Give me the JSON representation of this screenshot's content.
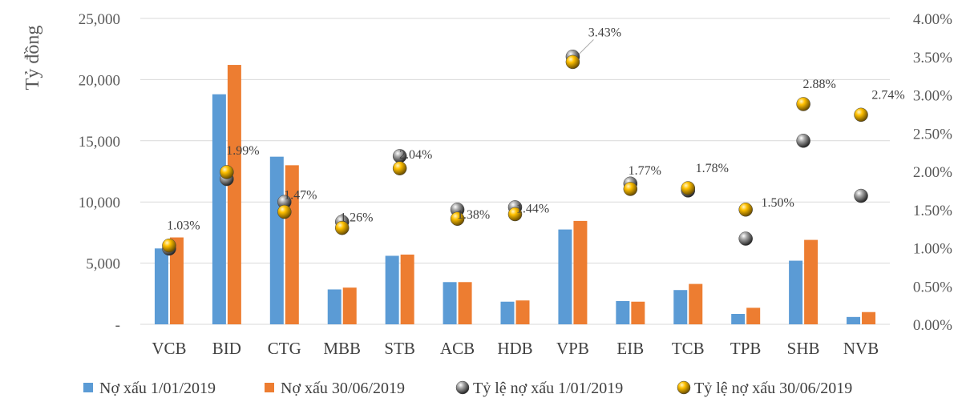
{
  "chart_data": {
    "type": "bar",
    "ylabel": "Tỷ đồng",
    "ylim": [
      0,
      25000
    ],
    "y_ticks": [
      "25,000",
      "20,000",
      "15,000",
      "10,000",
      "5,000",
      "-"
    ],
    "y2lim": [
      0,
      0.04
    ],
    "y2_ticks": [
      "4.00%",
      "3.50%",
      "3.00%",
      "2.50%",
      "2.00%",
      "1.50%",
      "1.00%",
      "0.50%",
      "0.00%"
    ],
    "categories": [
      "VCB",
      "BID",
      "CTG",
      "MBB",
      "STB",
      "ACB",
      "HDB",
      "VPB",
      "EIB",
      "TCB",
      "TPB",
      "SHB",
      "NVB"
    ],
    "series": [
      {
        "name": "Nợ xấu 1/01/2019",
        "kind": "bar",
        "axis": "left",
        "color": "#5B9BD5",
        "values": [
          6200,
          18800,
          13700,
          2850,
          5600,
          3450,
          1850,
          7750,
          1900,
          2800,
          850,
          5200,
          600
        ]
      },
      {
        "name": "Nợ xấu 30/06/2019",
        "kind": "bar",
        "axis": "left",
        "color": "#ED7D31",
        "values": [
          7100,
          21200,
          13000,
          3000,
          5700,
          3450,
          1950,
          8450,
          1850,
          3300,
          1350,
          6900,
          1000
        ]
      },
      {
        "name": "Tỷ lệ nợ xấu 1/01/2019",
        "kind": "scatter",
        "axis": "right",
        "color": "#7F7F7F",
        "values": [
          0.0099,
          0.019,
          0.016,
          0.0134,
          0.022,
          0.015,
          0.0153,
          0.035,
          0.0184,
          0.0175,
          0.0112,
          0.024,
          0.0168
        ]
      },
      {
        "name": "Tỷ lệ nợ xấu 30/06/2019",
        "kind": "scatter",
        "axis": "right",
        "color": "#FFC000",
        "values": [
          0.0103,
          0.0199,
          0.0147,
          0.0126,
          0.0204,
          0.0138,
          0.0144,
          0.0343,
          0.0177,
          0.0178,
          0.015,
          0.0288,
          0.0274
        ]
      }
    ],
    "data_labels": [
      "1.03%",
      "1.99%",
      "1.47%",
      "1.26%",
      "2.04%",
      "1.38%",
      "1.44%",
      "3.43%",
      "1.77%",
      "1.78%",
      "1.50%",
      "2.88%",
      "2.74%"
    ],
    "legend_position": "bottom",
    "grid": true
  }
}
